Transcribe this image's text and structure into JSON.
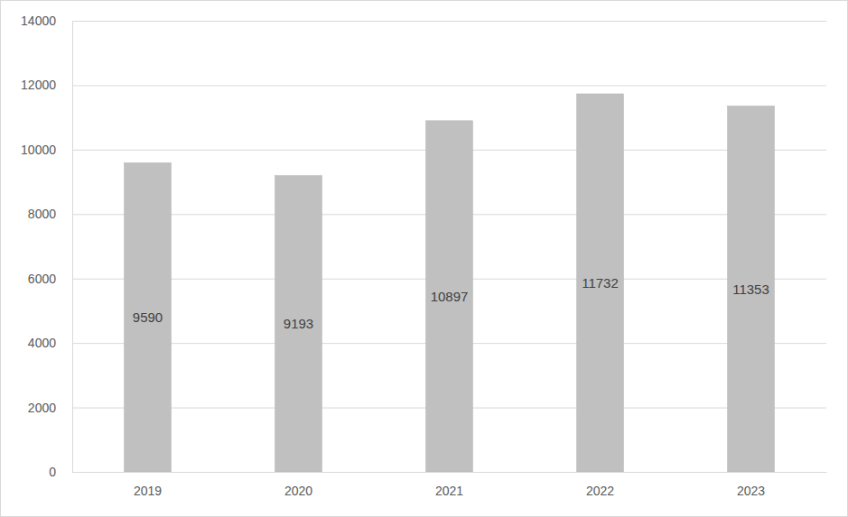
{
  "chart_data": {
    "type": "bar",
    "categories": [
      "2019",
      "2020",
      "2021",
      "2022",
      "2023"
    ],
    "values": [
      9590,
      9193,
      10897,
      11732,
      11353
    ],
    "color": "#c0c0c0",
    "ylim": [
      0,
      14000
    ],
    "yticks": [
      0,
      2000,
      4000,
      6000,
      8000,
      10000,
      12000,
      14000
    ],
    "grid": true,
    "data_labels": true
  }
}
